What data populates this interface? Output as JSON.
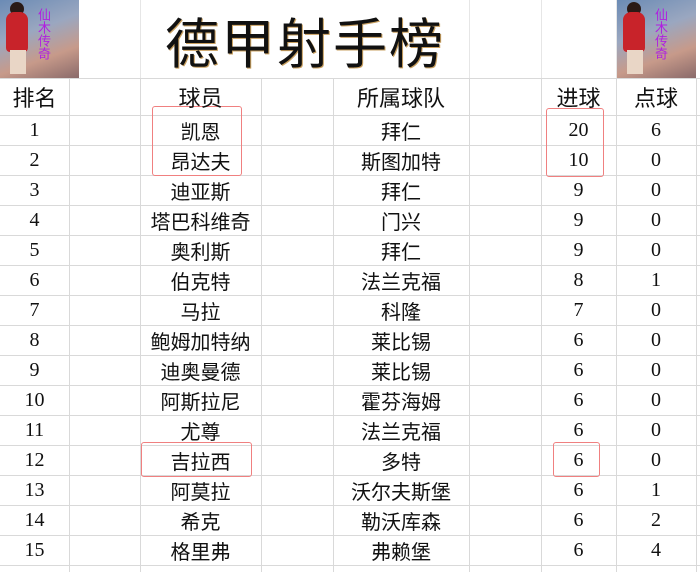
{
  "title": "德甲射手榜",
  "logo_text": "仙木传奇",
  "headers": {
    "rank": "排名",
    "player": "球员",
    "team": "所属球队",
    "goals": "进球",
    "penalties": "点球"
  },
  "rows": [
    {
      "rank": "1",
      "player": "凯恩",
      "team": "拜仁",
      "goals": "20",
      "penalties": "6"
    },
    {
      "rank": "2",
      "player": "昂达夫",
      "team": "斯图加特",
      "goals": "10",
      "penalties": "0"
    },
    {
      "rank": "3",
      "player": "迪亚斯",
      "team": "拜仁",
      "goals": "9",
      "penalties": "0"
    },
    {
      "rank": "4",
      "player": "塔巴科维奇",
      "team": "门兴",
      "goals": "9",
      "penalties": "0"
    },
    {
      "rank": "5",
      "player": "奥利斯",
      "team": "拜仁",
      "goals": "9",
      "penalties": "0"
    },
    {
      "rank": "6",
      "player": "伯克特",
      "team": "法兰克福",
      "goals": "8",
      "penalties": "1"
    },
    {
      "rank": "7",
      "player": "马拉",
      "team": "科隆",
      "goals": "7",
      "penalties": "0"
    },
    {
      "rank": "8",
      "player": "鲍姆加特纳",
      "team": "莱比锡",
      "goals": "6",
      "penalties": "0"
    },
    {
      "rank": "9",
      "player": "迪奥曼德",
      "team": "莱比锡",
      "goals": "6",
      "penalties": "0"
    },
    {
      "rank": "10",
      "player": "阿斯拉尼",
      "team": "霍芬海姆",
      "goals": "6",
      "penalties": "0"
    },
    {
      "rank": "11",
      "player": "尤尊",
      "team": "法兰克福",
      "goals": "6",
      "penalties": "0"
    },
    {
      "rank": "12",
      "player": "吉拉西",
      "team": "多特",
      "goals": "6",
      "penalties": "0"
    },
    {
      "rank": "13",
      "player": "阿莫拉",
      "team": "沃尔夫斯堡",
      "goals": "6",
      "penalties": "1"
    },
    {
      "rank": "14",
      "player": "希克",
      "team": "勒沃库森",
      "goals": "6",
      "penalties": "2"
    },
    {
      "rank": "15",
      "player": "格里弗",
      "team": "弗赖堡",
      "goals": "6",
      "penalties": "4"
    }
  ],
  "highlight_color": "#f08080"
}
